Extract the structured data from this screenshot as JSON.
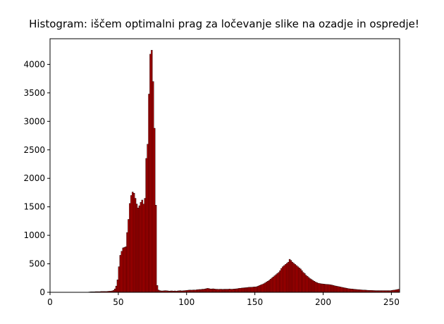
{
  "chart_data": {
    "type": "bar",
    "title": "Histogram: iščem optimalni prag za ločevanje slike na ozadje in ospredje!",
    "xlabel": "",
    "ylabel": "",
    "xlim": [
      0,
      256
    ],
    "ylim": [
      0,
      4450
    ],
    "xticks": [
      0,
      50,
      100,
      150,
      200,
      250
    ],
    "yticks": [
      0,
      500,
      1000,
      1500,
      2000,
      2500,
      3000,
      3500,
      4000
    ],
    "grid": false,
    "bar_color": "#b30000",
    "bar_edge_color": "#000000",
    "bins_start": 0,
    "bin_width": 1,
    "values": [
      0,
      0,
      0,
      0,
      0,
      0,
      0,
      0,
      0,
      0,
      0,
      0,
      0,
      0,
      0,
      0,
      0,
      0,
      0,
      0,
      0,
      0,
      0,
      0,
      0,
      0,
      0,
      0,
      5,
      8,
      10,
      10,
      10,
      12,
      12,
      12,
      12,
      15,
      15,
      15,
      15,
      15,
      18,
      20,
      20,
      25,
      35,
      60,
      110,
      220,
      450,
      650,
      720,
      780,
      790,
      800,
      1050,
      1280,
      1560,
      1700,
      1760,
      1740,
      1650,
      1550,
      1480,
      1520,
      1580,
      1620,
      1550,
      1650,
      2350,
      2600,
      3480,
      4180,
      4250,
      3700,
      2880,
      1530,
      120,
      40,
      30,
      25,
      25,
      28,
      30,
      28,
      25,
      22,
      25,
      25,
      22,
      25,
      20,
      25,
      28,
      30,
      25,
      28,
      30,
      32,
      35,
      38,
      40,
      38,
      40,
      42,
      40,
      45,
      48,
      50,
      50,
      55,
      55,
      60,
      65,
      70,
      65,
      60,
      60,
      62,
      58,
      55,
      55,
      52,
      55,
      55,
      52,
      55,
      55,
      55,
      55,
      58,
      55,
      55,
      58,
      60,
      62,
      65,
      70,
      72,
      75,
      78,
      80,
      82,
      85,
      88,
      90,
      90,
      92,
      95,
      95,
      100,
      110,
      120,
      130,
      140,
      150,
      165,
      180,
      195,
      210,
      230,
      250,
      270,
      290,
      310,
      330,
      350,
      380,
      420,
      450,
      470,
      490,
      510,
      530,
      580,
      560,
      530,
      510,
      490,
      470,
      450,
      430,
      410,
      380,
      350,
      330,
      300,
      280,
      260,
      240,
      225,
      210,
      195,
      180,
      170,
      160,
      155,
      150,
      148,
      145,
      142,
      140,
      138,
      136,
      132,
      128,
      122,
      115,
      110,
      105,
      100,
      95,
      90,
      85,
      80,
      75,
      70,
      65,
      62,
      60,
      58,
      55,
      52,
      50,
      48,
      46,
      44,
      42,
      40,
      40,
      38,
      36,
      35,
      34,
      33,
      32,
      31,
      30,
      30,
      30,
      30,
      30,
      30,
      30,
      30,
      30,
      30,
      30,
      30,
      35,
      38,
      40,
      45,
      50,
      55
    ]
  }
}
